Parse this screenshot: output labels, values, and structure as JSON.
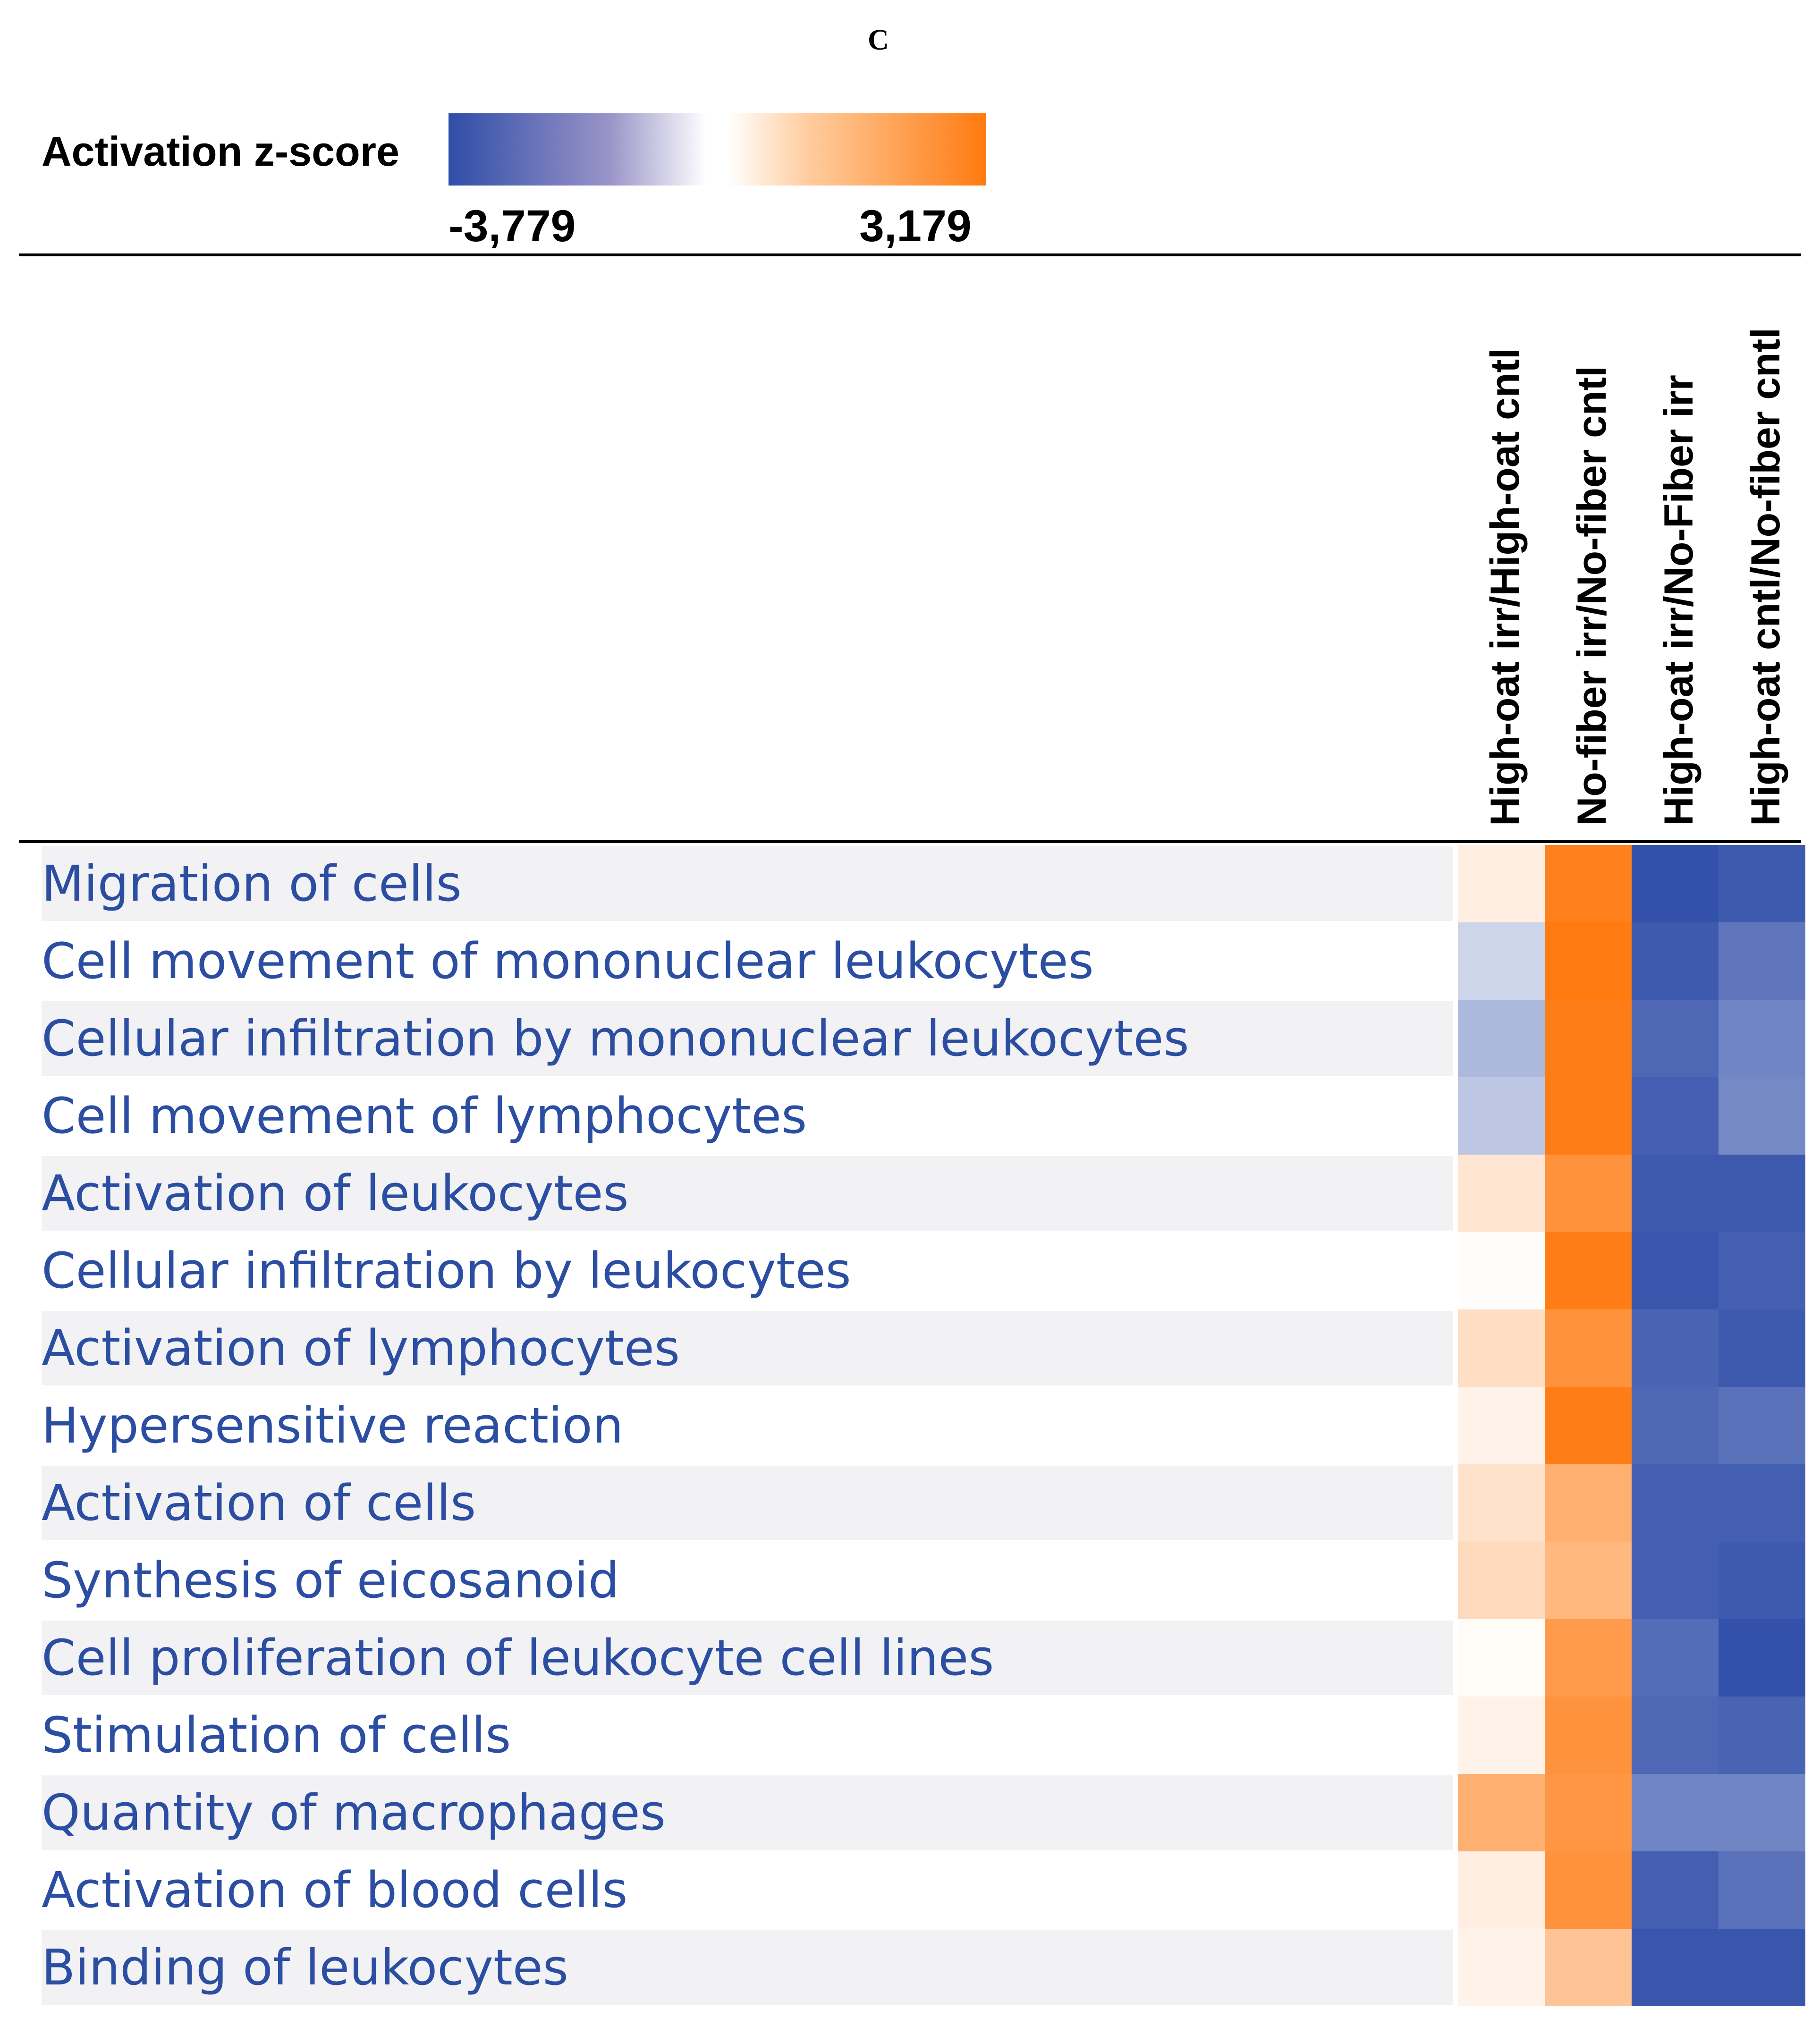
{
  "panel_letter": "C",
  "legend": {
    "title": "Activation z-score",
    "min_label": "-3,779",
    "max_label": "3,179",
    "colors": {
      "negative": "#2f4da8",
      "neutral": "#ffffff",
      "positive": "#ff7a10"
    }
  },
  "chart_data": {
    "type": "heatmap",
    "title": "",
    "zlim": [
      -3.779,
      3.179
    ],
    "columns": [
      "High-oat irr/High-oat cntl",
      "No-fiber irr/No-fiber cntl",
      "High-oat irr/No-Fiber irr",
      "High-oat cntl/No-fiber cntl"
    ],
    "rows": [
      "Migration of cells",
      "Cell movement of mononuclear leukocytes",
      "Cellular infiltration by mononuclear leukocytes",
      "Cell movement of lymphocytes",
      "Activation of leukocytes",
      "Cellular infiltration by leukocytes",
      "Activation of lymphocytes",
      "Hypersensitive reaction",
      "Activation of cells",
      "Synthesis of eicosanoid",
      "Cell proliferation of leukocyte cell lines",
      "Stimulation of cells",
      "Quantity of macrophages",
      "Activation of blood cells",
      "Binding of leukocytes"
    ],
    "values": [
      [
        0.4,
        3.0,
        -3.7,
        -3.5
      ],
      [
        -0.9,
        3.2,
        -3.5,
        -2.9
      ],
      [
        -1.5,
        3.1,
        -3.2,
        -2.6
      ],
      [
        -1.2,
        3.1,
        -3.4,
        -2.5
      ],
      [
        0.6,
        2.6,
        -3.5,
        -3.5
      ],
      [
        0.05,
        3.1,
        -3.6,
        -3.4
      ],
      [
        0.8,
        2.6,
        -3.3,
        -3.5
      ],
      [
        0.3,
        3.1,
        -3.2,
        -3.0
      ],
      [
        0.7,
        1.9,
        -3.4,
        -3.4
      ],
      [
        0.9,
        1.7,
        -3.4,
        -3.5
      ],
      [
        0.1,
        2.4,
        -3.1,
        -3.7
      ],
      [
        0.3,
        2.6,
        -3.2,
        -3.3
      ],
      [
        1.9,
        2.5,
        -2.6,
        -2.6
      ],
      [
        0.4,
        2.6,
        -3.4,
        -3.0
      ],
      [
        0.3,
        1.4,
        -3.6,
        -3.6
      ]
    ]
  }
}
